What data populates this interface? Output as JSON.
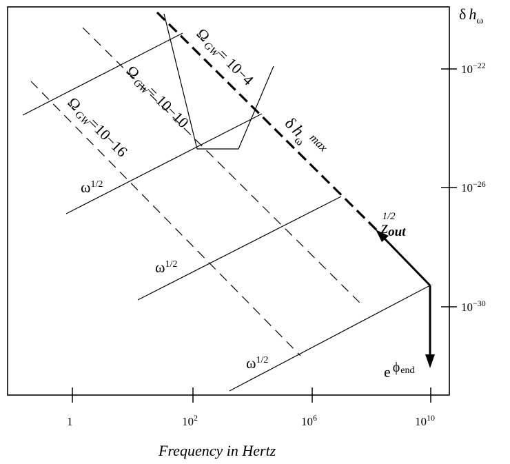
{
  "diagram": {
    "x_axis": {
      "title": "Frequency in Hertz",
      "ticks": [
        {
          "base": "1",
          "exp": ""
        },
        {
          "base": "10",
          "exp": "2"
        },
        {
          "base": "10",
          "exp": "6"
        },
        {
          "base": "10",
          "exp": "10"
        }
      ]
    },
    "y_axis": {
      "title_symbol": "δ",
      "title_var": "h",
      "title_sub": "ω",
      "ticks": [
        {
          "base": "10",
          "exp": "−22"
        },
        {
          "base": "10",
          "exp": "−26"
        },
        {
          "base": "10",
          "exp": "−30"
        }
      ]
    },
    "omega_labels": [
      {
        "main": "Ω",
        "sub": "GW",
        "eq": "= 10−4"
      },
      {
        "main": "Ω",
        "sub": "GW",
        "eq": "= 10−10"
      },
      {
        "main": "Ω",
        "sub": "GW",
        "eq": "=10−16"
      }
    ],
    "delta_h_max": {
      "symbol": "δ",
      "var": "h",
      "sub": "ω",
      "sup": "max"
    },
    "omega_half_labels": [
      {
        "base": "ω",
        "exp": "1/2"
      },
      {
        "base": "ω",
        "exp": "1/2"
      },
      {
        "base": "ω",
        "exp": "1/2"
      }
    ],
    "z_out": {
      "var": "z",
      "sub": "out",
      "sup": "1/2"
    },
    "e_phi": {
      "base": "e",
      "exp": "ϕ",
      "exp_sub": "end"
    }
  }
}
